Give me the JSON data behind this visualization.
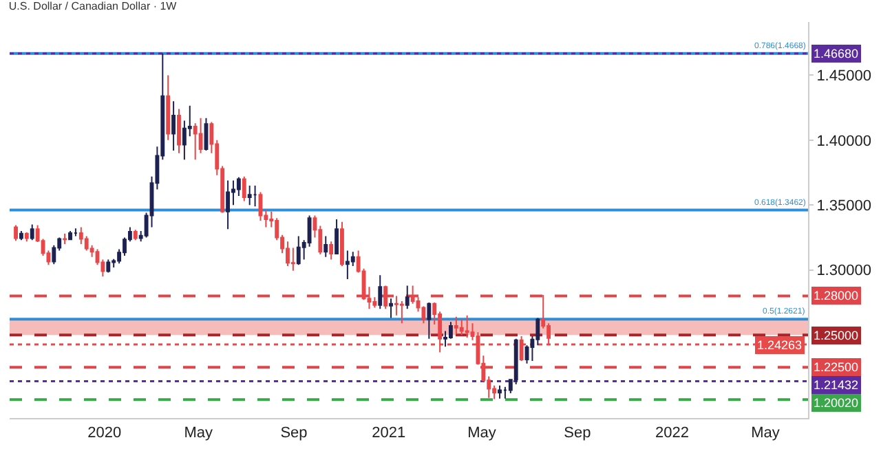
{
  "chart_data": {
    "type": "candlestick",
    "title": "U.S. Dollar / Canadian Dollar · 1W",
    "x": [
      "2019-09-09",
      "2019-09-16",
      "2019-09-23",
      "2019-09-30",
      "2019-10-07",
      "2019-10-14",
      "2019-10-21",
      "2019-10-28",
      "2019-11-04",
      "2019-11-11",
      "2019-11-18",
      "2019-11-25",
      "2019-12-02",
      "2019-12-09",
      "2019-12-16",
      "2019-12-23",
      "2019-12-30",
      "2020-01-06",
      "2020-01-13",
      "2020-01-20",
      "2020-01-27",
      "2020-02-03",
      "2020-02-10",
      "2020-02-17",
      "2020-02-24",
      "2020-03-02",
      "2020-03-09",
      "2020-03-16",
      "2020-03-23",
      "2020-03-30",
      "2020-04-06",
      "2020-04-13",
      "2020-04-20",
      "2020-04-27",
      "2020-05-04",
      "2020-05-11",
      "2020-05-18",
      "2020-05-25",
      "2020-06-01",
      "2020-06-08",
      "2020-06-15",
      "2020-06-22",
      "2020-06-29",
      "2020-07-06",
      "2020-07-13",
      "2020-07-20",
      "2020-07-27",
      "2020-08-03",
      "2020-08-10",
      "2020-08-17",
      "2020-08-24",
      "2020-08-31",
      "2020-09-07",
      "2020-09-14",
      "2020-09-21",
      "2020-09-28",
      "2020-10-05",
      "2020-10-12",
      "2020-10-19",
      "2020-10-26",
      "2020-11-02",
      "2020-11-09",
      "2020-11-16",
      "2020-11-23",
      "2020-11-30",
      "2020-12-07",
      "2020-12-14",
      "2020-12-21",
      "2020-12-28",
      "2021-01-04",
      "2021-01-11",
      "2021-01-18",
      "2021-01-25",
      "2021-02-01",
      "2021-02-08",
      "2021-02-15",
      "2021-02-22",
      "2021-03-01",
      "2021-03-08",
      "2021-03-15",
      "2021-03-22",
      "2021-03-29",
      "2021-04-05",
      "2021-04-12",
      "2021-04-19",
      "2021-04-26",
      "2021-05-03",
      "2021-05-10",
      "2021-05-17",
      "2021-05-24",
      "2021-05-31",
      "2021-06-07",
      "2021-06-14",
      "2021-06-21",
      "2021-06-28",
      "2021-07-05",
      "2021-07-12",
      "2021-07-19",
      "2021-07-26"
    ],
    "ohlc": [
      [
        1.333,
        1.3345,
        1.3225,
        1.3245
      ],
      [
        1.3245,
        1.33,
        1.323,
        1.328
      ],
      [
        1.328,
        1.329,
        1.322,
        1.3245
      ],
      [
        1.3245,
        1.335,
        1.323,
        1.3315
      ],
      [
        1.3315,
        1.3345,
        1.3215,
        1.3225
      ],
      [
        1.3225,
        1.324,
        1.311,
        1.313
      ],
      [
        1.313,
        1.315,
        1.304,
        1.3065
      ],
      [
        1.3065,
        1.319,
        1.3045,
        1.317
      ],
      [
        1.317,
        1.325,
        1.315,
        1.324
      ],
      [
        1.324,
        1.328,
        1.32,
        1.3235
      ],
      [
        1.3235,
        1.33,
        1.323,
        1.3285
      ],
      [
        1.3285,
        1.332,
        1.326,
        1.3285
      ],
      [
        1.3285,
        1.333,
        1.32,
        1.324
      ],
      [
        1.324,
        1.326,
        1.315,
        1.3165
      ],
      [
        1.3165,
        1.319,
        1.31,
        1.314
      ],
      [
        1.314,
        1.316,
        1.304,
        1.306
      ],
      [
        1.306,
        1.308,
        1.295,
        1.299
      ],
      [
        1.299,
        1.308,
        1.298,
        1.306
      ],
      [
        1.306,
        1.3085,
        1.302,
        1.307
      ],
      [
        1.307,
        1.316,
        1.305,
        1.3135
      ],
      [
        1.3135,
        1.325,
        1.311,
        1.3235
      ],
      [
        1.3235,
        1.333,
        1.322,
        1.3295
      ],
      [
        1.3295,
        1.331,
        1.323,
        1.3245
      ],
      [
        1.3245,
        1.33,
        1.322,
        1.3265
      ],
      [
        1.3265,
        1.344,
        1.325,
        1.342
      ],
      [
        1.342,
        1.372,
        1.333,
        1.367
      ],
      [
        1.367,
        1.395,
        1.362,
        1.388
      ],
      [
        1.388,
        1.4668,
        1.385,
        1.434
      ],
      [
        1.434,
        1.45,
        1.4,
        1.405
      ],
      [
        1.405,
        1.43,
        1.392,
        1.419
      ],
      [
        1.419,
        1.424,
        1.39,
        1.3965
      ],
      [
        1.3965,
        1.415,
        1.385,
        1.409
      ],
      [
        1.409,
        1.4265,
        1.403,
        1.4105
      ],
      [
        1.4105,
        1.413,
        1.385,
        1.405
      ],
      [
        1.405,
        1.417,
        1.39,
        1.393
      ],
      [
        1.393,
        1.417,
        1.392,
        1.4125
      ],
      [
        1.4125,
        1.414,
        1.39,
        1.397
      ],
      [
        1.397,
        1.4,
        1.373,
        1.378
      ],
      [
        1.378,
        1.38,
        1.344,
        1.345
      ],
      [
        1.345,
        1.369,
        1.3315,
        1.36
      ],
      [
        1.36,
        1.369,
        1.35,
        1.362
      ],
      [
        1.362,
        1.3715,
        1.357,
        1.37
      ],
      [
        1.37,
        1.372,
        1.353,
        1.356
      ],
      [
        1.356,
        1.365,
        1.35,
        1.358
      ],
      [
        1.358,
        1.365,
        1.349,
        1.358
      ],
      [
        1.358,
        1.36,
        1.338,
        1.342
      ],
      [
        1.342,
        1.3465,
        1.333,
        1.339
      ],
      [
        1.339,
        1.345,
        1.333,
        1.338
      ],
      [
        1.338,
        1.34,
        1.323,
        1.325
      ],
      [
        1.325,
        1.327,
        1.313,
        1.3165
      ],
      [
        1.3165,
        1.322,
        1.303,
        1.3055
      ],
      [
        1.3055,
        1.317,
        1.2995,
        1.305
      ],
      [
        1.305,
        1.326,
        1.304,
        1.3175
      ],
      [
        1.3175,
        1.323,
        1.308,
        1.321
      ],
      [
        1.321,
        1.342,
        1.318,
        1.34
      ],
      [
        1.34,
        1.342,
        1.325,
        1.331
      ],
      [
        1.331,
        1.334,
        1.312,
        1.314
      ],
      [
        1.314,
        1.326,
        1.31,
        1.3195
      ],
      [
        1.3195,
        1.322,
        1.308,
        1.3125
      ],
      [
        1.3125,
        1.339,
        1.312,
        1.3315
      ],
      [
        1.3315,
        1.337,
        1.303,
        1.3045
      ],
      [
        1.3045,
        1.315,
        1.293,
        1.3065
      ],
      [
        1.3065,
        1.314,
        1.303,
        1.31
      ],
      [
        1.31,
        1.315,
        1.298,
        1.299
      ],
      [
        1.299,
        1.301,
        1.277,
        1.278
      ],
      [
        1.278,
        1.287,
        1.27,
        1.2755
      ],
      [
        1.2755,
        1.279,
        1.271,
        1.273
      ],
      [
        1.273,
        1.296,
        1.27,
        1.287
      ],
      [
        1.287,
        1.288,
        1.27,
        1.2725
      ],
      [
        1.2725,
        1.278,
        1.263,
        1.274
      ],
      [
        1.274,
        1.28,
        1.265,
        1.2735
      ],
      [
        1.2735,
        1.276,
        1.259,
        1.273
      ],
      [
        1.273,
        1.288,
        1.27,
        1.279
      ],
      [
        1.279,
        1.288,
        1.274,
        1.276
      ],
      [
        1.276,
        1.279,
        1.268,
        1.271
      ],
      [
        1.271,
        1.272,
        1.259,
        1.262
      ],
      [
        1.262,
        1.275,
        1.247,
        1.274
      ],
      [
        1.274,
        1.275,
        1.258,
        1.266
      ],
      [
        1.266,
        1.268,
        1.2365,
        1.247
      ],
      [
        1.247,
        1.253,
        1.241,
        1.248
      ],
      [
        1.248,
        1.26,
        1.247,
        1.257
      ],
      [
        1.257,
        1.264,
        1.251,
        1.2555
      ],
      [
        1.2555,
        1.262,
        1.25,
        1.253
      ],
      [
        1.253,
        1.265,
        1.248,
        1.252
      ],
      [
        1.252,
        1.259,
        1.246,
        1.249
      ],
      [
        1.249,
        1.252,
        1.227,
        1.228
      ],
      [
        1.228,
        1.234,
        1.214,
        1.215
      ],
      [
        1.215,
        1.218,
        1.2015,
        1.2085
      ],
      [
        1.2085,
        1.211,
        1.2005,
        1.2055
      ],
      [
        1.2055,
        1.211,
        1.201,
        1.2075
      ],
      [
        1.2075,
        1.21,
        1.201,
        1.2075
      ],
      [
        1.2075,
        1.216,
        1.205,
        1.2155
      ],
      [
        1.2155,
        1.247,
        1.212,
        1.246
      ],
      [
        1.246,
        1.249,
        1.23,
        1.231
      ],
      [
        1.231,
        1.242,
        1.228,
        1.2405
      ],
      [
        1.2405,
        1.249,
        1.23,
        1.2465
      ],
      [
        1.2465,
        1.263,
        1.242,
        1.262
      ],
      [
        1.262,
        1.2808,
        1.255,
        1.257
      ],
      [
        1.257,
        1.259,
        1.2426,
        1.2475
      ]
    ],
    "colors": [
      "#e8474a",
      "#1e2251",
      "#e8474a",
      "#1e2251",
      "#e8474a",
      "#e8474a",
      "#e8474a",
      "#1e2251",
      "#1e2251",
      "#e8474a",
      "#1e2251",
      "#1e2251",
      "#e8474a",
      "#e8474a",
      "#e8474a",
      "#e8474a",
      "#e8474a",
      "#1e2251",
      "#1e2251",
      "#1e2251",
      "#1e2251",
      "#1e2251",
      "#e8474a",
      "#1e2251",
      "#1e2251",
      "#1e2251",
      "#1e2251",
      "#1e2251",
      "#e8474a",
      "#1e2251",
      "#e8474a",
      "#1e2251",
      "#1e2251",
      "#e8474a",
      "#e8474a",
      "#1e2251",
      "#e8474a",
      "#e8474a",
      "#e8474a",
      "#1e2251",
      "#1e2251",
      "#1e2251",
      "#e8474a",
      "#1e2251",
      "#1e2251",
      "#e8474a",
      "#e8474a",
      "#e8474a",
      "#e8474a",
      "#e8474a",
      "#e8474a",
      "#e8474a",
      "#1e2251",
      "#1e2251",
      "#1e2251",
      "#e8474a",
      "#e8474a",
      "#1e2251",
      "#e8474a",
      "#1e2251",
      "#e8474a",
      "#1e2251",
      "#1e2251",
      "#e8474a",
      "#e8474a",
      "#e8474a",
      "#e8474a",
      "#1e2251",
      "#e8474a",
      "#1e2251",
      "#e8474a",
      "#e8474a",
      "#1e2251",
      "#e8474a",
      "#e8474a",
      "#e8474a",
      "#1e2251",
      "#e8474a",
      "#e8474a",
      "#1e2251",
      "#1e2251",
      "#e8474a",
      "#e8474a",
      "#e8474a",
      "#e8474a",
      "#e8474a",
      "#e8474a",
      "#e8474a",
      "#e8474a",
      "#1e2251",
      "#1e2251",
      "#1e2251",
      "#1e2251",
      "#e8474a",
      "#1e2251",
      "#1e2251",
      "#1e2251",
      "#e8474a",
      "#e8474a"
    ],
    "xlim": [
      "2019-09-01",
      "2022-06-25"
    ],
    "xticks": [
      {
        "value": "2020-01-01",
        "label": "2020"
      },
      {
        "value": "2020-05-01",
        "label": "May"
      },
      {
        "value": "2020-09-01",
        "label": "Sep"
      },
      {
        "value": "2021-01-01",
        "label": "2021"
      },
      {
        "value": "2021-05-01",
        "label": "May"
      },
      {
        "value": "2021-09-01",
        "label": "Sep"
      },
      {
        "value": "2022-01-01",
        "label": "2022"
      },
      {
        "value": "2022-05-01",
        "label": "May"
      }
    ],
    "ylim": [
      1.186,
      1.491
    ],
    "yticks": [
      {
        "value": 1.3,
        "label": "1.30000"
      },
      {
        "value": 1.35,
        "label": "1.35000"
      },
      {
        "value": 1.4,
        "label": "1.40000"
      },
      {
        "value": 1.45,
        "label": "1.45000"
      }
    ],
    "ref_lines": [
      {
        "axis": "y",
        "value": 1.4668,
        "label": "0.786(1.4668)",
        "color": "#2e8fd8",
        "line_style": "solid"
      },
      {
        "axis": "y",
        "value": 1.4668,
        "label": "1.46680",
        "color": "#5b2c9e",
        "line_style": "dotted"
      },
      {
        "axis": "y",
        "value": 1.3462,
        "label": "0.618(1.3462)",
        "color": "#2e8fd8",
        "line_style": "solid"
      },
      {
        "axis": "y",
        "value": 1.2621,
        "label": "0.5(1.2621)",
        "color": "#2e8fd8",
        "line_style": "solid"
      },
      {
        "axis": "y",
        "value": 1.28,
        "label": "1.28000",
        "color": "#e0454a",
        "line_style": "dashed"
      },
      {
        "axis": "y",
        "value": 1.25,
        "label": "1.25000",
        "color": "#a8262b",
        "line_style": "dashed"
      },
      {
        "axis": "y",
        "value": 1.24263,
        "label": "1.24263",
        "color": "#e84a4a",
        "line_style": "dotted"
      },
      {
        "axis": "y",
        "value": 1.225,
        "label": "1.22500",
        "color": "#e0454a",
        "line_style": "dashed"
      },
      {
        "axis": "y",
        "value": 1.21432,
        "label": "1.21432",
        "color": "#5b2c9e",
        "line_style": "dotted"
      },
      {
        "axis": "y",
        "value": 1.2002,
        "label": "1.20020",
        "color": "#3aa84a",
        "line_style": "dashed"
      }
    ],
    "bands": [
      {
        "axis": "y",
        "from": 1.25,
        "to": 1.2621,
        "color": "#f2a09c"
      }
    ],
    "grid": false
  }
}
